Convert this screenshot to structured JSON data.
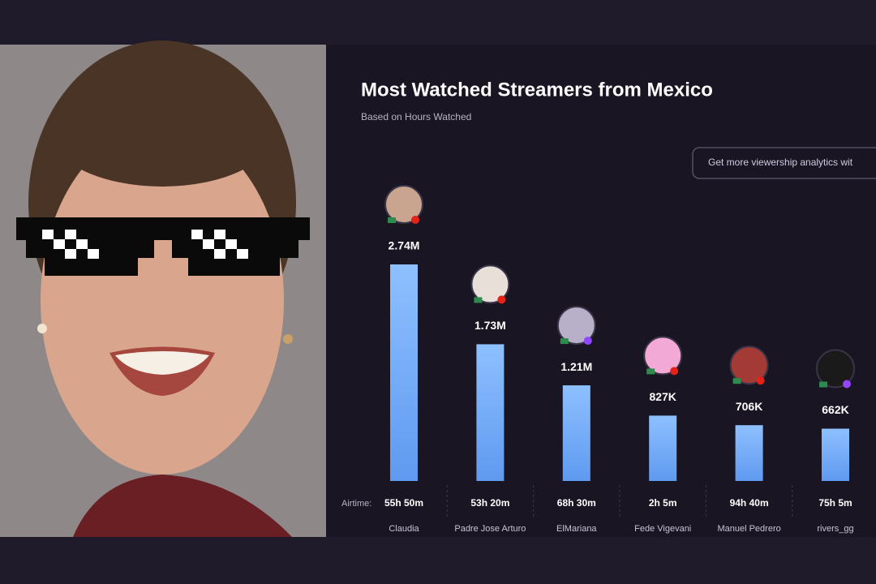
{
  "chart_data": {
    "type": "bar",
    "title": "Most Watched Streamers from Mexico",
    "subtitle": "Based on Hours Watched",
    "button": "Get more viewership analytics wit",
    "categories": [
      "Claudia",
      "Padre Jose Arturo",
      "ElMariana",
      "Fede Vigevani",
      "Manuel Pedrero",
      "rivers_gg"
    ],
    "values": [
      2740000,
      1730000,
      1210000,
      827000,
      706000,
      662000
    ],
    "value_labels": [
      "2.74M",
      "1.73M",
      "1.21M",
      "827K",
      "706K",
      "662K"
    ],
    "airtime_label": "Airtime:",
    "airtimes": [
      "55h 50m",
      "53h 20m",
      "68h 30m",
      "2h 5m",
      "94h 40m",
      "75h 5m"
    ],
    "color": "#7ab2fb"
  }
}
